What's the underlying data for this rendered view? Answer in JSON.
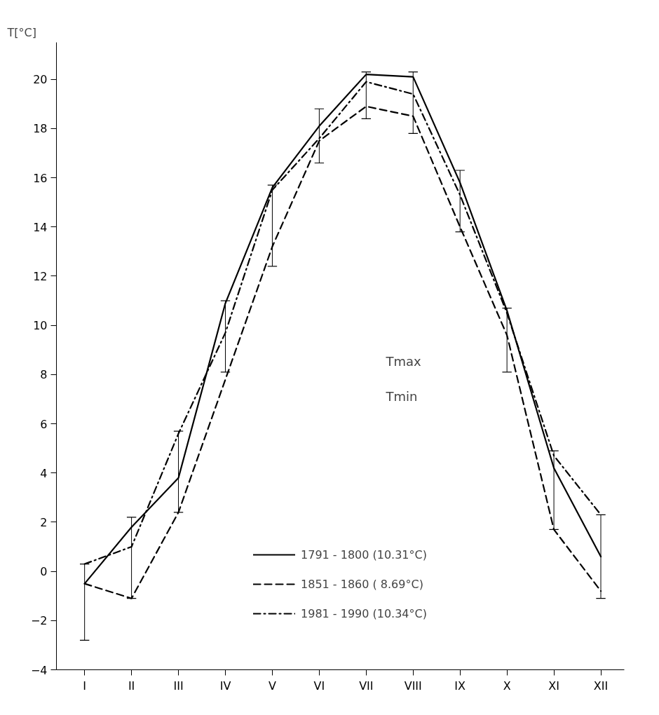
{
  "chart_data": {
    "type": "line",
    "ylabel": "T[°C]",
    "categories": [
      "I",
      "II",
      "III",
      "IV",
      "V",
      "VI",
      "VII",
      "VIII",
      "IX",
      "X",
      "XI",
      "XII"
    ],
    "ylim": [
      -4,
      21.5
    ],
    "yticks": [
      -4,
      -2,
      0,
      2,
      4,
      6,
      8,
      10,
      12,
      14,
      16,
      18,
      20
    ],
    "grid": false,
    "marker": "none",
    "legend": "bottom",
    "series": [
      {
        "name": "1791 - 1800 (10.31°C)",
        "color": "#000000",
        "line_style": "solid",
        "values": [
          -0.5,
          1.8,
          3.8,
          10.9,
          15.6,
          18.1,
          20.2,
          20.1,
          15.8,
          10.6,
          4.2,
          0.6
        ],
        "errors": [
          [
            -2.8,
            0.3
          ],
          [
            -1.1,
            2.2
          ],
          [
            2.4,
            5.7
          ],
          [
            8.1,
            11.0
          ],
          [
            12.4,
            15.7
          ],
          [
            16.6,
            18.8
          ],
          [
            18.4,
            20.3
          ],
          [
            17.8,
            20.3
          ],
          [
            13.8,
            16.3
          ],
          [
            8.1,
            10.7
          ],
          [
            1.7,
            4.9
          ],
          [
            -1.1,
            2.3
          ]
        ]
      },
      {
        "name": "1851 - 1860 ( 8.69°C)",
        "color": "#000000",
        "line_style": "dashed",
        "values": [
          -0.5,
          -1.1,
          2.4,
          7.8,
          13.2,
          17.5,
          18.9,
          18.5,
          14.0,
          9.6,
          1.7,
          -0.8
        ]
      },
      {
        "name": "1981 - 1990 (10.34°C)",
        "color": "#000000",
        "line_style": "dashdot",
        "values": [
          0.3,
          1.0,
          5.6,
          9.7,
          15.5,
          17.6,
          19.9,
          19.4,
          15.3,
          10.5,
          4.7,
          2.3
        ]
      }
    ],
    "annotations": [
      "Tmax",
      "Tmin"
    ]
  }
}
